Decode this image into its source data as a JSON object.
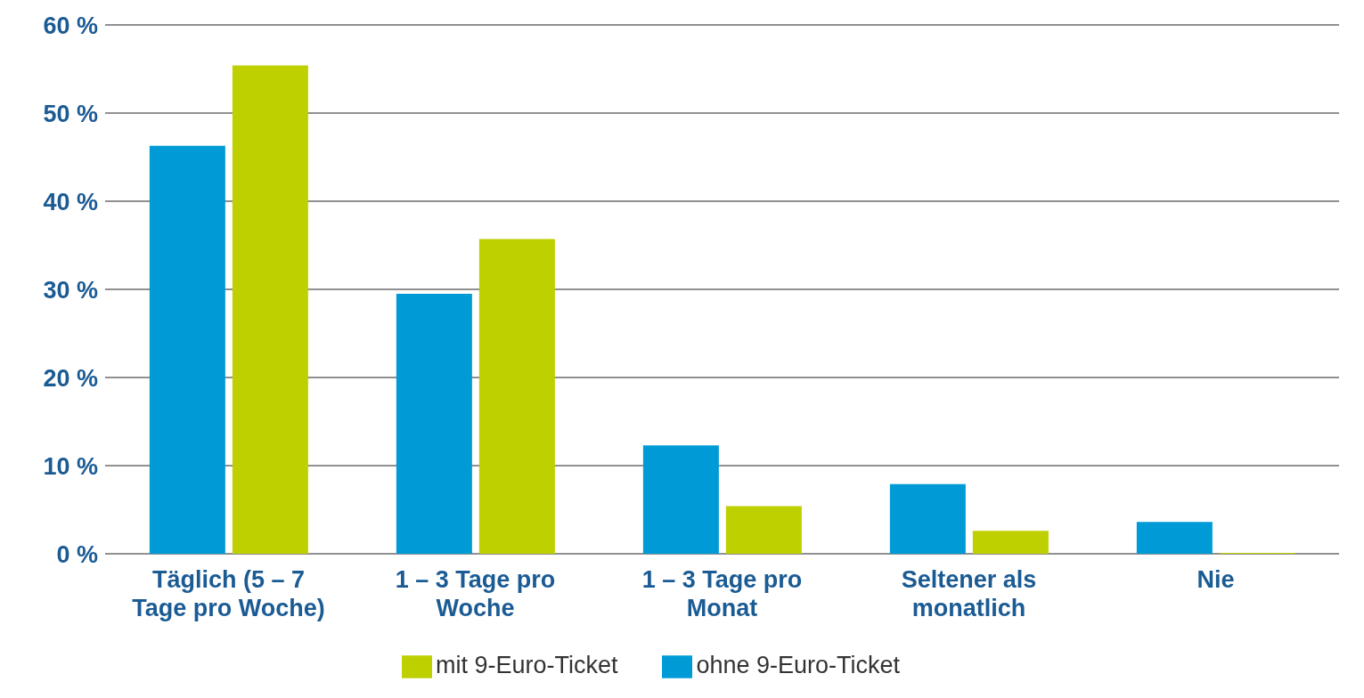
{
  "chart_data": {
    "type": "bar",
    "categories": [
      "Täglich (5 – 7 Tage pro Woche)",
      "1 – 3 Tage pro Woche",
      "1 – 3 Tage pro Monat",
      "Seltener als monatlich",
      "Nie"
    ],
    "series": [
      {
        "name": "ohne 9-Euro-Ticket",
        "color": "#009bd6",
        "values": [
          46.3,
          29.5,
          12.3,
          7.9,
          3.6
        ]
      },
      {
        "name": "mit 9-Euro-Ticket",
        "color": "#bed000",
        "values": [
          55.4,
          35.7,
          5.4,
          2.6,
          0.1
        ]
      }
    ],
    "ylim": [
      0,
      60
    ],
    "yticks": [
      {
        "value": 0,
        "label": "0 %"
      },
      {
        "value": 10,
        "label": "10 %"
      },
      {
        "value": 20,
        "label": "20 %"
      },
      {
        "value": 30,
        "label": "30 %"
      },
      {
        "value": 40,
        "label": "40 %"
      },
      {
        "value": 50,
        "label": "50 %"
      },
      {
        "value": 60,
        "label": "60 %"
      }
    ],
    "grid": "y",
    "legend": "bottom"
  }
}
